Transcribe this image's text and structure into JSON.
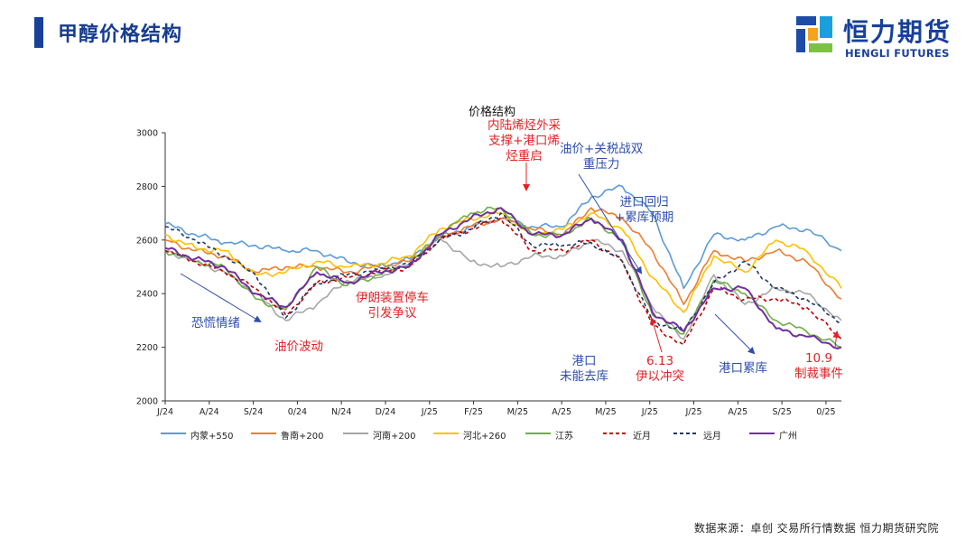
{
  "header": {
    "title": "甲醇价格结构"
  },
  "brand": {
    "name_cn": "恒力期货",
    "name_en": "HENGLI FUTURES",
    "colors": [
      "#1e4aa8",
      "#19a0dc",
      "#7dc143",
      "#f5a21f"
    ]
  },
  "footer": {
    "source": "数据来源：卓创  交易所行情数据  恒力期货研究院"
  },
  "chart_data": {
    "type": "line",
    "title": "价格结构",
    "x_tick_labels": [
      "J/24",
      "A/24",
      "S/24",
      "0/24",
      "N/24",
      "D/24",
      "J/25",
      "F/25",
      "M/25",
      "A/25",
      "M/25",
      "J/25",
      "J/25",
      "A/25",
      "S/25",
      "0/25"
    ],
    "x_range": [
      "2024-01-02",
      "2025-11-05"
    ],
    "ylim": [
      2000,
      3000
    ],
    "y_ticks": [
      2000,
      2200,
      2400,
      2600,
      2800,
      3000
    ],
    "grid": false,
    "legend_position": "bottom",
    "series_x": [
      "2024-01-02",
      "2024-02-01",
      "2024-03-01",
      "2024-04-01",
      "2024-05-01",
      "2024-06-01",
      "2024-07-01",
      "2024-08-01",
      "2024-09-01",
      "2024-10-01",
      "2024-11-01",
      "2024-12-01",
      "2025-01-01",
      "2025-02-01",
      "2025-03-01",
      "2025-04-01",
      "2025-05-01",
      "2025-06-01",
      "2025-07-01",
      "2025-08-01",
      "2025-09-01",
      "2025-10-01",
      "2025-11-05"
    ],
    "series": [
      {
        "name": "内蒙+550",
        "color": "#5b9bd5",
        "dash": false,
        "values": [
          2660,
          2620,
          2590,
          2580,
          2560,
          2560,
          2520,
          2500,
          2530,
          2610,
          2650,
          2680,
          2650,
          2650,
          2760,
          2800,
          2700,
          2420,
          2620,
          2600,
          2650,
          2640,
          2560
        ]
      },
      {
        "name": "鲁南+200",
        "color": "#ed7d31",
        "dash": false,
        "values": [
          2600,
          2560,
          2540,
          2480,
          2500,
          2500,
          2480,
          2500,
          2520,
          2610,
          2650,
          2680,
          2640,
          2620,
          2720,
          2680,
          2560,
          2360,
          2560,
          2520,
          2560,
          2520,
          2380
        ]
      },
      {
        "name": "河南+200",
        "color": "#a5a5a5",
        "dash": false,
        "values": [
          2560,
          2520,
          2480,
          2400,
          2300,
          2360,
          2450,
          2460,
          2510,
          2610,
          2520,
          2500,
          2540,
          2540,
          2600,
          2560,
          2350,
          2230,
          2470,
          2360,
          2420,
          2400,
          2300
        ]
      },
      {
        "name": "河北+260",
        "color": "#ffc000",
        "dash": false,
        "values": [
          2620,
          2570,
          2560,
          2470,
          2480,
          2520,
          2500,
          2510,
          2540,
          2640,
          2680,
          2700,
          2620,
          2640,
          2700,
          2640,
          2460,
          2330,
          2540,
          2480,
          2600,
          2560,
          2420
        ]
      },
      {
        "name": "江苏",
        "color": "#70ad47",
        "dash": false,
        "values": [
          2560,
          2520,
          2500,
          2380,
          2340,
          2500,
          2430,
          2470,
          2510,
          2620,
          2700,
          2720,
          2620,
          2620,
          2680,
          2600,
          2320,
          2250,
          2450,
          2400,
          2300,
          2260,
          2200
        ]
      },
      {
        "name": "近月",
        "color": "#c00000",
        "dash": true,
        "values": [
          2560,
          2520,
          2480,
          2420,
          2320,
          2440,
          2460,
          2480,
          2500,
          2600,
          2640,
          2680,
          2560,
          2560,
          2600,
          2520,
          2280,
          2210,
          2420,
          2380,
          2380,
          2350,
          2230
        ]
      },
      {
        "name": "远月",
        "color": "#1f3864",
        "dash": true,
        "values": [
          2650,
          2600,
          2540,
          2470,
          2310,
          2440,
          2470,
          2490,
          2510,
          2600,
          2640,
          2700,
          2580,
          2580,
          2590,
          2520,
          2300,
          2260,
          2440,
          2520,
          2420,
          2380,
          2290
        ]
      },
      {
        "name": "广州",
        "color": "#7030a0",
        "dash": false,
        "values": [
          2570,
          2530,
          2500,
          2400,
          2350,
          2480,
          2440,
          2480,
          2500,
          2620,
          2680,
          2720,
          2620,
          2620,
          2680,
          2600,
          2330,
          2260,
          2420,
          2420,
          2270,
          2240,
          2200
        ]
      }
    ],
    "annotations": [
      {
        "id": "panic",
        "text": "恐慌情绪",
        "color": "#2e4eaa"
      },
      {
        "id": "oil-volatility",
        "text": "油价波动",
        "color": "#e32227"
      },
      {
        "id": "iran-shutdown",
        "text": "伊朗装置停车\n引发争议",
        "color": "#e32227"
      },
      {
        "id": "inland-olefin",
        "text": "内陆烯烃外采\n支撑+港口烯\n烃重启",
        "color": "#e32227"
      },
      {
        "id": "oil-tariff",
        "text": "油价+关税战双\n重压力",
        "color": "#2e4eaa"
      },
      {
        "id": "import-return",
        "text": "进口回归\n+累库预期",
        "color": "#2e4eaa"
      },
      {
        "id": "port-no-destock",
        "text": "港口\n未能去库",
        "color": "#2e4eaa"
      },
      {
        "id": "iran-israel",
        "text": "6.13\n伊以冲突",
        "color": "#e32227"
      },
      {
        "id": "port-stockpile",
        "text": "港口累库",
        "color": "#2e4eaa"
      },
      {
        "id": "sanctions",
        "text": "10.9\n制裁事件",
        "color": "#e32227"
      }
    ]
  }
}
